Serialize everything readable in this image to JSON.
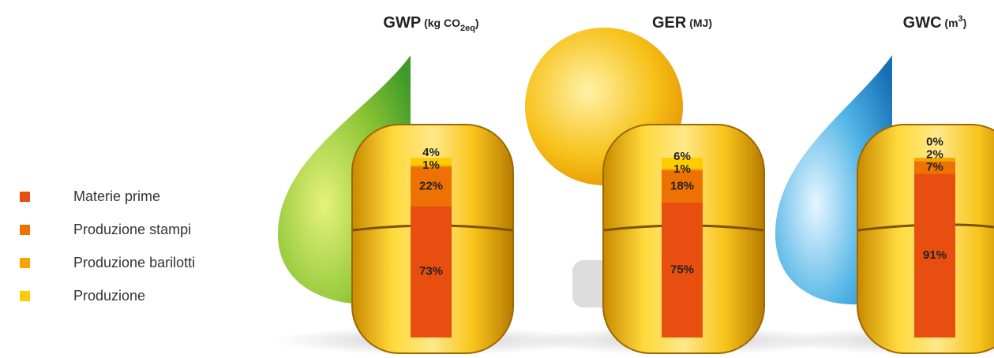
{
  "chart_data": {
    "type": "stacked-bar",
    "categories": [
      "GWP",
      "GER",
      "GWC"
    ],
    "unit_parts": [
      [
        "(kg CO",
        "2eq",
        ")"
      ],
      [
        "(MJ)"
      ],
      [
        "(m",
        "3",
        ")"
      ]
    ],
    "unit_shift": [
      "sub",
      null,
      "super"
    ],
    "series": [
      {
        "name": "Materie prime",
        "color": "#e84e0f",
        "values": [
          73,
          75,
          91
        ],
        "value_labels": [
          "73%",
          "75%",
          "91%"
        ]
      },
      {
        "name": "Produzione stampi",
        "color": "#ee7203",
        "values": [
          22,
          18,
          7
        ],
        "value_labels": [
          "22%",
          "18%",
          "7%"
        ]
      },
      {
        "name": "Produzione barilotti",
        "color": "#f7a600",
        "values": [
          1,
          1,
          2
        ],
        "value_labels": [
          "1%",
          "1%",
          "2%"
        ]
      },
      {
        "name": "Produzione",
        "color": "#ffcc00",
        "values": [
          4,
          6,
          0
        ],
        "value_labels": [
          "4%",
          "6%",
          "0%"
        ]
      }
    ],
    "legend": "left"
  }
}
